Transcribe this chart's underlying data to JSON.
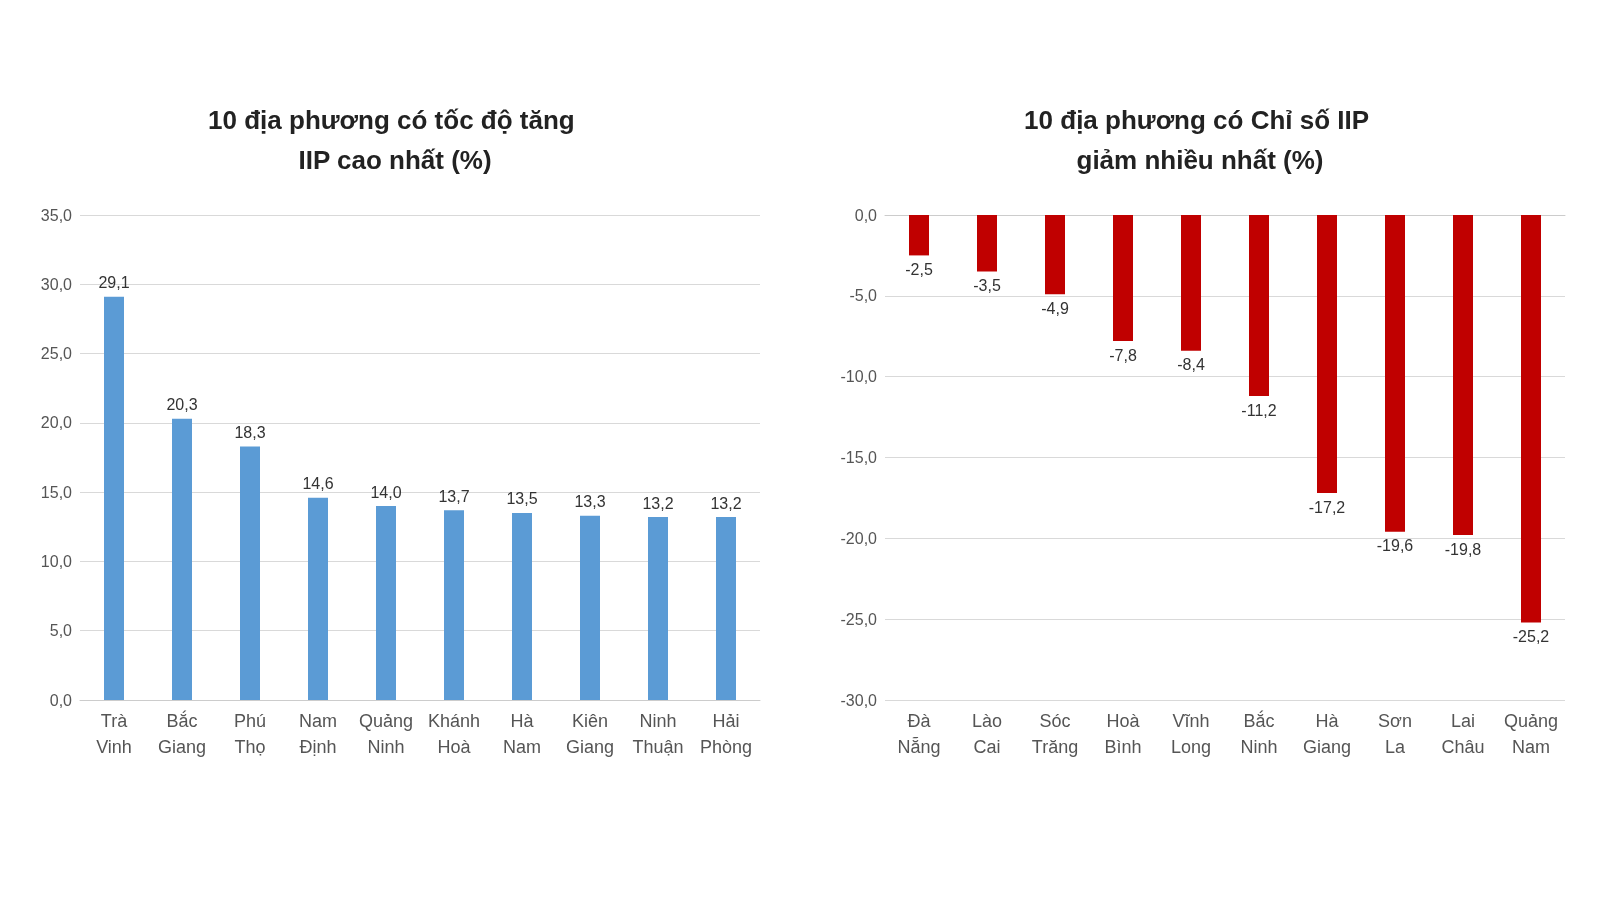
{
  "chart_data": [
    {
      "type": "bar",
      "title": "10 địa phương có tốc độ tăng IIP cao nhất (%)",
      "categories": [
        "Trà Vinh",
        "Bắc Giang",
        "Phú Thọ",
        "Nam Định",
        "Quảng Ninh",
        "Khánh Hoà",
        "Hà Nam",
        "Kiên Giang",
        "Ninh Thuận",
        "Hải Phòng"
      ],
      "values": [
        29.1,
        20.3,
        18.3,
        14.6,
        14.0,
        13.7,
        13.5,
        13.3,
        13.2,
        13.2
      ],
      "value_labels": [
        "29,1",
        "20,3",
        "18,3",
        "14,6",
        "14,0",
        "13,7",
        "13,5",
        "13,3",
        "13,2",
        "13,2"
      ],
      "color": "#5b9bd5",
      "ylim": [
        0,
        35
      ],
      "yticks": [
        {
          "value": 0,
          "label": "0,0"
        },
        {
          "value": 5,
          "label": "5,0"
        },
        {
          "value": 10,
          "label": "10,0"
        },
        {
          "value": 15,
          "label": "15,0"
        },
        {
          "value": 20,
          "label": "20,0"
        },
        {
          "value": 25,
          "label": "25,0"
        },
        {
          "value": 30,
          "label": "30,0"
        },
        {
          "value": 35,
          "label": "35,0"
        }
      ],
      "grid": "y"
    },
    {
      "type": "bar",
      "title": "10 địa phương có Chỉ số IIP giảm nhiều nhất (%)",
      "categories": [
        "Đà Nẵng",
        "Lào Cai",
        "Sóc Trăng",
        "Hoà Bình",
        "Vĩnh Long",
        "Bắc Ninh",
        "Hà Giang",
        "Sơn La",
        "Lai Châu",
        "Quảng Nam"
      ],
      "values": [
        -2.5,
        -3.5,
        -4.9,
        -7.8,
        -8.4,
        -11.2,
        -17.2,
        -19.6,
        -19.8,
        -25.2
      ],
      "value_labels": [
        "-2,5",
        "-3,5",
        "-4,9",
        "-7,8",
        "-8,4",
        "-11,2",
        "-17,2",
        "-19,6",
        "-19,8",
        "-25,2"
      ],
      "color": "#c00000",
      "ylim": [
        -30,
        0
      ],
      "yticks": [
        {
          "value": -30,
          "label": "-30,0"
        },
        {
          "value": -25,
          "label": "-25,0"
        },
        {
          "value": -20,
          "label": "-20,0"
        },
        {
          "value": -15,
          "label": "-15,0"
        },
        {
          "value": -10,
          "label": "-10,0"
        },
        {
          "value": -5,
          "label": "-5,0"
        },
        {
          "value": 0,
          "label": "0,0"
        }
      ],
      "grid": "y"
    }
  ]
}
